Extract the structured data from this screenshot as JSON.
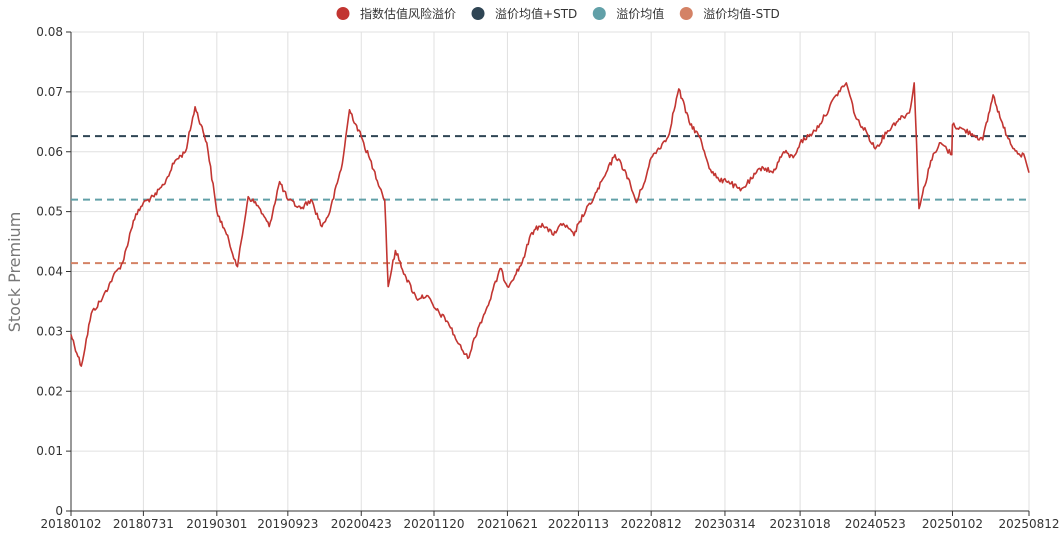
{
  "chart_data": {
    "type": "line",
    "ylabel": "Stock Premium",
    "ylim": [
      0,
      0.08
    ],
    "y_ticks": [
      "0",
      "0.01",
      "0.02",
      "0.03",
      "0.04",
      "0.05",
      "0.06",
      "0.07",
      "0.08"
    ],
    "x_ticks": [
      "20180102",
      "20180731",
      "20190301",
      "20190923",
      "20200423",
      "20201120",
      "20210621",
      "20220113",
      "20220812",
      "20230314",
      "20231018",
      "20240523",
      "20250102",
      "20250812"
    ],
    "grid": true,
    "legend_position": "top-center",
    "legend": [
      {
        "name": "指数估值风险溢价",
        "color": "#c23531"
      },
      {
        "name": "溢价均值+STD",
        "color": "#2f4554"
      },
      {
        "name": "溢价均值",
        "color": "#61a0a8"
      },
      {
        "name": "溢价均值-STD",
        "color": "#d48265"
      }
    ],
    "series": [
      {
        "name": "指数估值风险溢价",
        "color": "#c23531",
        "points": [
          [
            "20180102",
            0.0295
          ],
          [
            "20180201",
            0.0242
          ],
          [
            "20180302",
            0.033
          ],
          [
            "20180403",
            0.0355
          ],
          [
            "20180503",
            0.039
          ],
          [
            "20180601",
            0.0415
          ],
          [
            "20180702",
            0.0485
          ],
          [
            "20180731",
            0.0515
          ],
          [
            "20180831",
            0.0525
          ],
          [
            "20180928",
            0.0545
          ],
          [
            "20181031",
            0.0585
          ],
          [
            "20181130",
            0.06
          ],
          [
            "20181228",
            0.0675
          ],
          [
            "20190131",
            0.0615
          ],
          [
            "20190301",
            0.05
          ],
          [
            "20190329",
            0.0462
          ],
          [
            "20190430",
            0.0408
          ],
          [
            "20190531",
            0.0525
          ],
          [
            "20190628",
            0.051
          ],
          [
            "20190731",
            0.0475
          ],
          [
            "20190830",
            0.055
          ],
          [
            "20190923",
            0.052
          ],
          [
            "20191031",
            0.0505
          ],
          [
            "20191129",
            0.052
          ],
          [
            "20191231",
            0.0475
          ],
          [
            "20200123",
            0.05
          ],
          [
            "20200228",
            0.058
          ],
          [
            "20200320",
            0.067
          ],
          [
            "20200423",
            0.0625
          ],
          [
            "20200529",
            0.057
          ],
          [
            "20200630",
            0.052
          ],
          [
            "20200710",
            0.0375
          ],
          [
            "20200731",
            0.0435
          ],
          [
            "20200831",
            0.039
          ],
          [
            "20200930",
            0.0355
          ],
          [
            "20201030",
            0.036
          ],
          [
            "20201120",
            0.034
          ],
          [
            "20201231",
            0.0315
          ],
          [
            "20210129",
            0.028
          ],
          [
            "20210226",
            0.0255
          ],
          [
            "20210331",
            0.031
          ],
          [
            "20210430",
            0.035
          ],
          [
            "20210531",
            0.0405
          ],
          [
            "20210621",
            0.0375
          ],
          [
            "20210730",
            0.041
          ],
          [
            "20210831",
            0.0465
          ],
          [
            "20210930",
            0.048
          ],
          [
            "20211029",
            0.0462
          ],
          [
            "20211130",
            0.048
          ],
          [
            "20211231",
            0.046
          ],
          [
            "20220113",
            0.048
          ],
          [
            "20220228",
            0.0525
          ],
          [
            "20220331",
            0.056
          ],
          [
            "20220429",
            0.0595
          ],
          [
            "20220531",
            0.0565
          ],
          [
            "20220630",
            0.0515
          ],
          [
            "20220729",
            0.056
          ],
          [
            "20220812",
            0.059
          ],
          [
            "20220930",
            0.0625
          ],
          [
            "20221031",
            0.0705
          ],
          [
            "20221130",
            0.065
          ],
          [
            "20221230",
            0.0625
          ],
          [
            "20230131",
            0.057
          ],
          [
            "20230228",
            0.055
          ],
          [
            "20230314",
            0.0555
          ],
          [
            "20230428",
            0.0535
          ],
          [
            "20230531",
            0.0555
          ],
          [
            "20230630",
            0.0575
          ],
          [
            "20230731",
            0.0565
          ],
          [
            "20230831",
            0.06
          ],
          [
            "20230928",
            0.059
          ],
          [
            "20231018",
            0.0615
          ],
          [
            "20231130",
            0.0635
          ],
          [
            "20231229",
            0.066
          ],
          [
            "20240131",
            0.0695
          ],
          [
            "20240229",
            0.0715
          ],
          [
            "20240329",
            0.0655
          ],
          [
            "20240430",
            0.063
          ],
          [
            "20240523",
            0.0605
          ],
          [
            "20240628",
            0.0635
          ],
          [
            "20240731",
            0.0655
          ],
          [
            "20240830",
            0.0665
          ],
          [
            "20240913",
            0.0715
          ],
          [
            "20240927",
            0.0505
          ],
          [
            "20241031",
            0.0585
          ],
          [
            "20241129",
            0.0615
          ],
          [
            "20241231",
            0.0595
          ],
          [
            "20250102",
            0.0645
          ],
          [
            "20250228",
            0.063
          ],
          [
            "20250331",
            0.062
          ],
          [
            "20250430",
            0.0695
          ],
          [
            "20250530",
            0.064
          ],
          [
            "20250630",
            0.0605
          ],
          [
            "20250731",
            0.059
          ],
          [
            "20250812",
            0.0565
          ]
        ]
      },
      {
        "name": "溢价均值+STD",
        "color": "#2f4554",
        "value": 0.0626,
        "dashed": true
      },
      {
        "name": "溢价均值",
        "color": "#61a0a8",
        "value": 0.052,
        "dashed": true
      },
      {
        "name": "溢价均值-STD",
        "color": "#d48265",
        "value": 0.0414,
        "dashed": true
      }
    ]
  }
}
